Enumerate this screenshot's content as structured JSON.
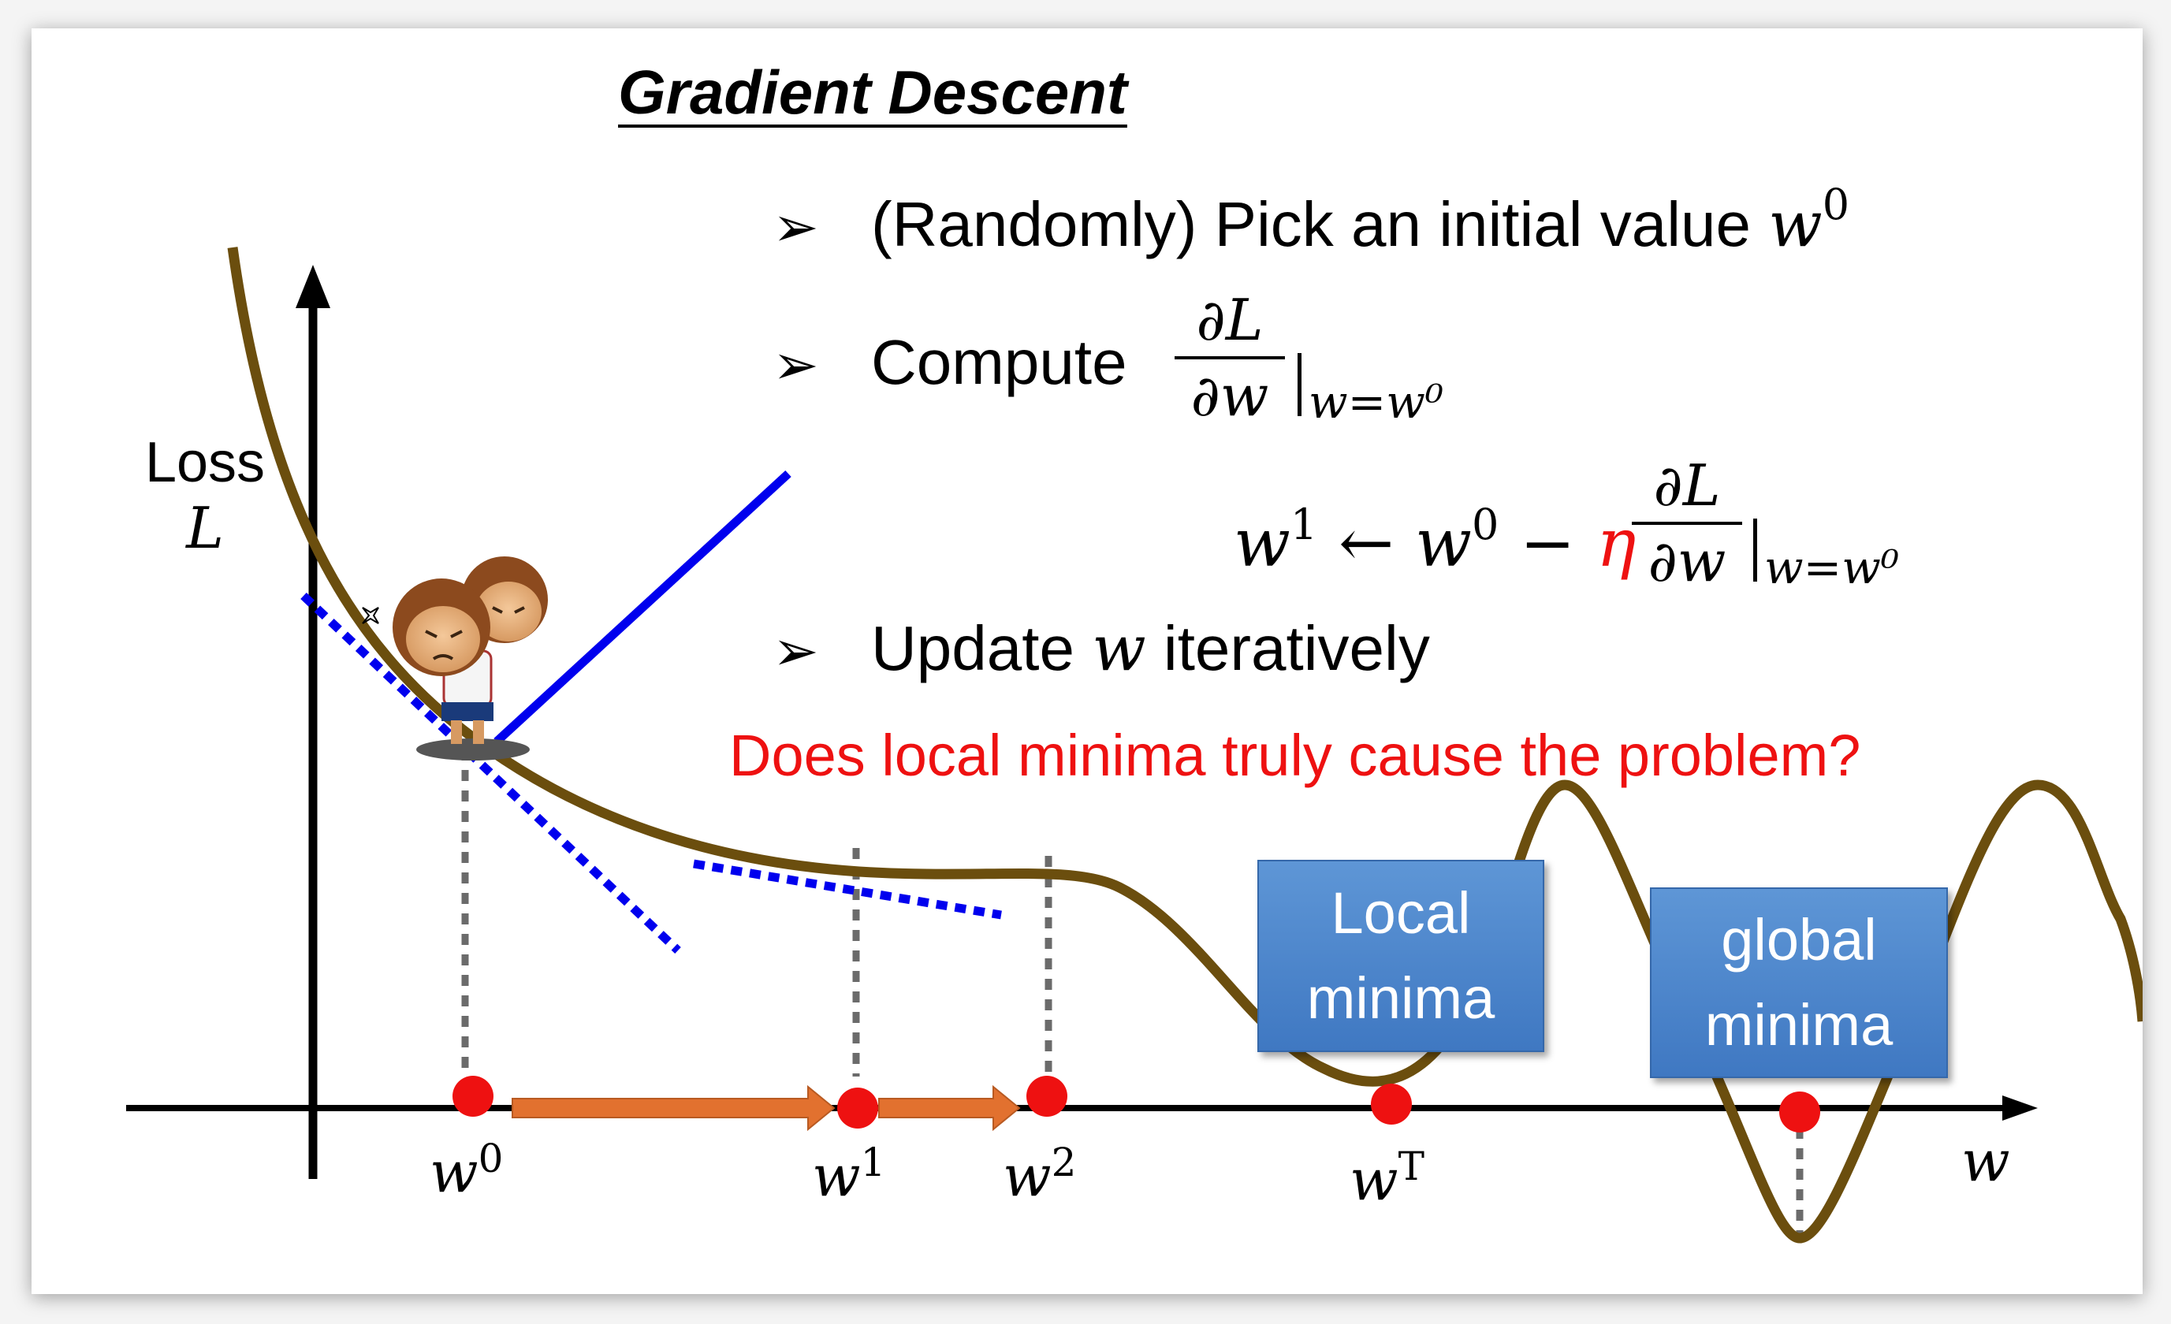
{
  "title": "Gradient Descent",
  "steps": [
    {
      "marker": "➢",
      "text": "(Randomly) Pick an initial value",
      "var": "w",
      "sup": "0"
    },
    {
      "marker": "➢",
      "text": "Compute"
    },
    {
      "marker": "➢",
      "text": "Update",
      "var": "w",
      "tail": "iteratively"
    }
  ],
  "derivative": {
    "numerator": "∂L",
    "denominator": "∂w",
    "subscript": "w=w⁰"
  },
  "update_rule": {
    "lhs": "w",
    "lhs_sup": "1",
    "arrow": "←",
    "rhs": "w",
    "rhs_sup": "0",
    "minus": "−",
    "eta": "η"
  },
  "question": "Does local minima truly cause the problem?",
  "axes": {
    "y_label_line1": "Loss",
    "y_label_line2": "L",
    "x_label": "w"
  },
  "ticks": [
    {
      "base": "w",
      "sup": "0"
    },
    {
      "base": "w",
      "sup": "1"
    },
    {
      "base": "w",
      "sup": "2"
    },
    {
      "base": "w",
      "sup": "T"
    }
  ],
  "boxes": {
    "local": [
      "Local",
      "minima"
    ],
    "global": [
      "global",
      "minima"
    ]
  },
  "colors": {
    "curve": "#6b4e0e",
    "tangent": "#0000ee",
    "point": "#ee1111",
    "arrow": "#e2712f",
    "dotted": "#6b6b6b",
    "question": "#ee1111",
    "box": "#4a85cc"
  },
  "icons": [
    "monkey-character-icon"
  ]
}
